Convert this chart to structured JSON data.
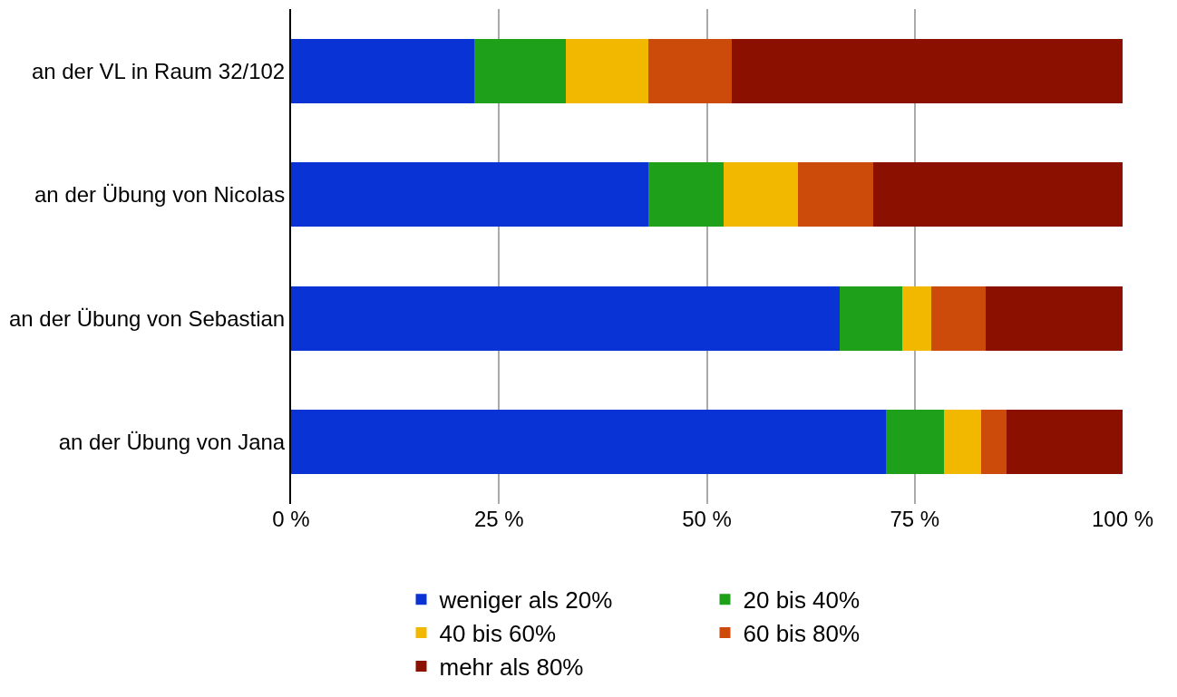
{
  "chart_data": {
    "type": "bar",
    "orientation": "horizontal",
    "stacked": true,
    "categories": [
      "an der VL in Raum 32/102",
      "an der Übung von Nicolas",
      "an der Übung von Sebastian",
      "an der Übung von Jana"
    ],
    "series": [
      {
        "name": "weniger als 20%",
        "color": "#0a33d6",
        "values": [
          22,
          43,
          66,
          71.5
        ]
      },
      {
        "name": "20 bis 40%",
        "color": "#1fa01a",
        "values": [
          11,
          9,
          7.5,
          7
        ]
      },
      {
        "name": "40 bis 60%",
        "color": "#f2b800",
        "values": [
          10,
          9,
          3.5,
          4.5
        ]
      },
      {
        "name": "60 bis 80%",
        "color": "#cc4a0a",
        "values": [
          10,
          9,
          6.5,
          3
        ]
      },
      {
        "name": "mehr als 80%",
        "color": "#8c1000",
        "values": [
          47,
          30,
          16.5,
          14
        ]
      }
    ],
    "xlim": [
      0,
      100
    ],
    "xticks": [
      {
        "value": 0,
        "label": "0 %"
      },
      {
        "value": 25,
        "label": "25 %"
      },
      {
        "value": 50,
        "label": "50 %"
      },
      {
        "value": 75,
        "label": "75 %"
      },
      {
        "value": 100,
        "label": "100 %"
      }
    ],
    "grid": "x",
    "legend": "bottom"
  }
}
